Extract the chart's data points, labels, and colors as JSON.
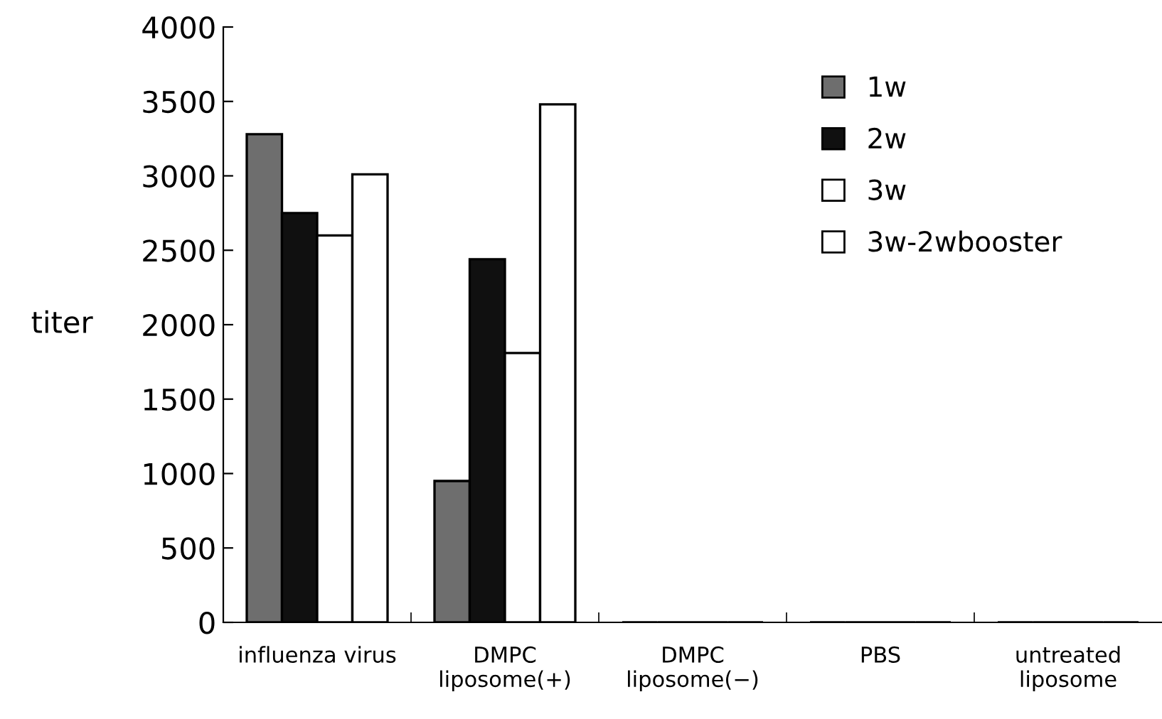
{
  "chart_data": {
    "type": "bar",
    "ylabel": "titer",
    "categories": [
      "influenza virus",
      "DMPC\nliposome(+)",
      "DMPC\nliposome(−)",
      "PBS",
      "untreated\nliposome"
    ],
    "series": [
      {
        "name": "1w",
        "color": "#6e6e6e",
        "values": [
          3280,
          950,
          0,
          0,
          0
        ]
      },
      {
        "name": "2w",
        "color": "#101010",
        "values": [
          2750,
          2440,
          0,
          0,
          0
        ]
      },
      {
        "name": "3w",
        "color": "#ffffff",
        "values": [
          2600,
          1810,
          0,
          0,
          0
        ]
      },
      {
        "name": "3w-2wbooster",
        "color": "#ffffff",
        "values": [
          3010,
          3480,
          0,
          0,
          0
        ]
      }
    ],
    "ylim": [
      0,
      4000
    ],
    "yticks": [
      0,
      500,
      1000,
      1500,
      2000,
      2500,
      3000,
      3500,
      4000
    ],
    "grid": false,
    "legend": "top right"
  }
}
